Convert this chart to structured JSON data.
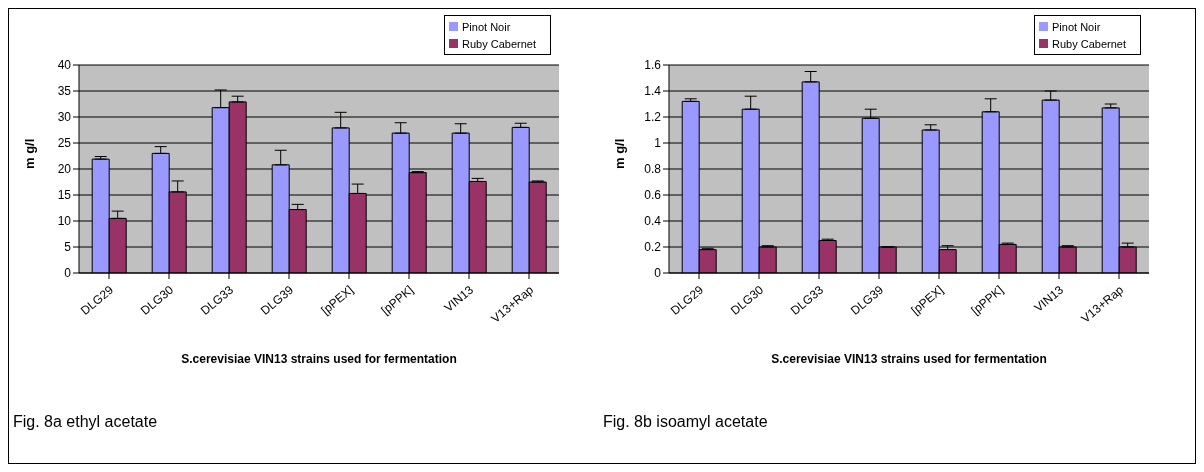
{
  "chart_data": [
    {
      "type": "bar",
      "xlabel": "S.cerevisiae VIN13 strains used for fermentation",
      "ylabel": "m g/l",
      "annotations": [
        "Fig. 8a ethyl acetate"
      ],
      "categories": [
        "DLG29",
        "DLG30",
        "DLG33",
        "DLG39",
        "[pPEX]",
        "[pPPK]",
        "VIN13",
        "V13+Rap"
      ],
      "series": [
        {
          "name": "Pinot Noir",
          "color": "#9999ff",
          "values": [
            21.9,
            23,
            31.8,
            20.8,
            27.9,
            26.9,
            26.9,
            28
          ],
          "errors": [
            [
              21.9,
              22.4
            ],
            [
              23,
              24.3
            ],
            [
              31.8,
              35.2
            ],
            [
              20.8,
              23.6
            ],
            [
              27.9,
              30.9
            ],
            [
              26.9,
              28.9
            ],
            [
              26.9,
              28.7
            ],
            [
              28,
              28.8
            ]
          ]
        },
        {
          "name": "Ruby Cabernet",
          "color": "#993366",
          "values": [
            10.5,
            15.6,
            32.9,
            12.2,
            15.3,
            19.3,
            17.6,
            17.5
          ],
          "errors": [
            [
              10.5,
              11.9
            ],
            [
              15.6,
              17.7
            ],
            [
              32.9,
              34
            ],
            [
              12.2,
              13.2
            ],
            [
              15.3,
              17.1
            ],
            [
              19.3,
              19.5
            ],
            [
              17.6,
              18.2
            ],
            [
              17.5,
              17.7
            ]
          ]
        }
      ],
      "ylim": [
        0,
        40
      ],
      "yticks": [
        0,
        5,
        10,
        15,
        20,
        25,
        30,
        35,
        40
      ],
      "grid": "y",
      "legend": "top right"
    },
    {
      "type": "bar",
      "xlabel": "S.cerevisiae VIN13 strains used for fermentation",
      "ylabel": "m g/l",
      "annotations": [
        "Fig. 8b isoamyl acetate"
      ],
      "categories": [
        "DLG29",
        "DLG30",
        "DLG33",
        "DLG39",
        "[pPEX]",
        "[pPPK]",
        "VIN13",
        "V13+Rap"
      ],
      "series": [
        {
          "name": "Pinot Noir",
          "color": "#9999ff",
          "values": [
            1.32,
            1.26,
            1.47,
            1.19,
            1.1,
            1.24,
            1.33,
            1.27
          ],
          "errors": [
            [
              1.32,
              1.34
            ],
            [
              1.26,
              1.36
            ],
            [
              1.47,
              1.55
            ],
            [
              1.19,
              1.26
            ],
            [
              1.1,
              1.14
            ],
            [
              1.24,
              1.34
            ],
            [
              1.33,
              1.4
            ],
            [
              1.27,
              1.3
            ]
          ]
        },
        {
          "name": "Ruby Cabernet",
          "color": "#993366",
          "values": [
            0.18,
            0.2,
            0.25,
            0.2,
            0.18,
            0.22,
            0.2,
            0.2
          ],
          "errors": [
            [
              0.18,
              0.19
            ],
            [
              0.2,
              0.21
            ],
            [
              0.25,
              0.26
            ],
            null,
            [
              0.18,
              0.21
            ],
            [
              0.22,
              0.23
            ],
            [
              0.2,
              0.21
            ],
            [
              0.2,
              0.23
            ]
          ]
        }
      ],
      "ylim": [
        0,
        1.6
      ],
      "yticks": [
        0,
        0.2,
        0.4,
        0.6,
        0.8,
        1,
        1.2,
        1.4,
        1.6
      ],
      "grid": "y",
      "legend": "top right"
    }
  ]
}
